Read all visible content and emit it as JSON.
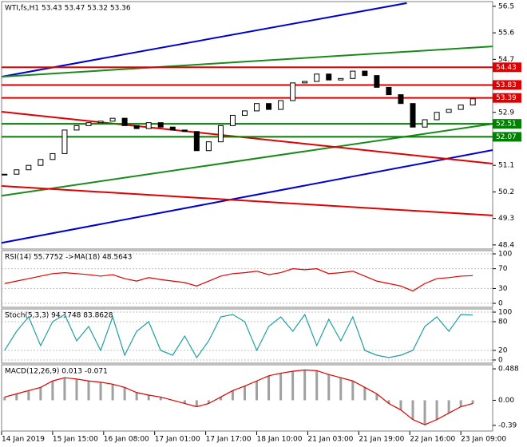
{
  "chart_data": [
    {
      "type": "candlestick",
      "title": "WTI,fs,H1  53.43 53.47 53.32 53.36",
      "x": [
        1,
        5,
        9,
        13,
        17,
        21,
        25,
        29,
        33,
        37,
        41,
        45,
        49,
        53,
        57,
        61,
        65,
        69,
        73,
        77,
        81,
        85,
        89,
        93,
        97,
        101,
        105,
        109,
        113,
        117,
        121,
        125,
        129,
        133,
        137,
        141,
        145,
        149,
        153,
        157
      ],
      "values": [
        50.8,
        50.95,
        51.1,
        51.3,
        51.5,
        52.3,
        52.45,
        52.55,
        52.6,
        52.7,
        52.45,
        52.35,
        52.55,
        52.4,
        52.3,
        52.25,
        51.6,
        51.9,
        52.45,
        52.8,
        52.95,
        53.2,
        53.0,
        53.3,
        53.9,
        53.95,
        54.2,
        54.0,
        54.05,
        54.3,
        54.15,
        53.75,
        53.5,
        53.2,
        52.4,
        52.65,
        52.9,
        53.0,
        53.15,
        53.36
      ],
      "xlim": [
        0,
        163.6
      ],
      "ylim": [
        48.26,
        56.66
      ],
      "yticks": [
        56.5,
        55.6,
        54.7,
        52.9,
        51.1,
        50.2,
        49.3,
        48.4
      ],
      "xticks": [
        {
          "value": 0,
          "label": "14 Jan 2019"
        },
        {
          "value": 17,
          "label": "15 Jan 15:00"
        },
        {
          "value": 34,
          "label": "16 Jan 08:00"
        },
        {
          "value": 51,
          "label": "17 Jan 01:00"
        },
        {
          "value": 68,
          "label": "17 Jan 17:00"
        },
        {
          "value": 85,
          "label": "18 Jan 10:00"
        },
        {
          "value": 102,
          "label": "21 Jan 03:00"
        },
        {
          "value": 119,
          "label": "21 Jan 19:00"
        },
        {
          "value": 136,
          "label": "22 Jan 16:00"
        },
        {
          "value": 153,
          "label": "23 Jan 09:00"
        }
      ],
      "levels": [
        {
          "value": 54.43,
          "color": "#e00000"
        },
        {
          "value": 53.83,
          "color": "#e00000"
        },
        {
          "value": 53.39,
          "color": "#e00000"
        },
        {
          "value": 52.51,
          "color": "#008000"
        },
        {
          "value": 52.07,
          "color": "#008000"
        }
      ],
      "trendlines": [
        {
          "color": "#0000cc",
          "x": [
            0,
            135
          ],
          "values": [
            54.11,
            56.61
          ]
        },
        {
          "color": "#0000cc",
          "x": [
            0,
            163.6
          ],
          "values": [
            48.47,
            51.62
          ]
        },
        {
          "color": "#1a8a1a",
          "x": [
            0,
            163.6
          ],
          "values": [
            54.11,
            55.14
          ]
        },
        {
          "color": "#1a8a1a",
          "x": [
            0,
            163.6
          ],
          "values": [
            50.07,
            52.51
          ]
        },
        {
          "color": "#e00000",
          "x": [
            0,
            163.6
          ],
          "values": [
            52.92,
            51.16
          ]
        },
        {
          "color": "#e00000",
          "x": [
            0,
            163.6
          ],
          "values": [
            50.4,
            49.4
          ]
        }
      ]
    },
    {
      "type": "line",
      "title": "RSI(14) 55.7752  ->MA(18) 48.5643",
      "color": "#e00000",
      "x": [
        1,
        5,
        9,
        13,
        17,
        21,
        25,
        29,
        33,
        37,
        41,
        45,
        49,
        53,
        57,
        61,
        65,
        69,
        73,
        77,
        81,
        85,
        89,
        93,
        97,
        101,
        105,
        109,
        113,
        117,
        121,
        125,
        129,
        133,
        137,
        141,
        145,
        149,
        153,
        157
      ],
      "values": [
        40,
        45,
        50,
        55,
        60,
        62,
        60,
        58,
        55,
        58,
        50,
        45,
        52,
        48,
        45,
        42,
        35,
        45,
        55,
        60,
        62,
        65,
        58,
        62,
        70,
        68,
        70,
        60,
        62,
        65,
        55,
        45,
        40,
        35,
        25,
        40,
        50,
        52,
        55,
        56
      ],
      "xlim": [
        0,
        163.6
      ],
      "ylim": [
        -8,
        106.5
      ],
      "yticks": [
        100,
        70,
        30,
        0
      ]
    },
    {
      "type": "line",
      "title": "Stoch(5,3,3) 94.1748 83.8628",
      "color": "#20a0a0",
      "x": [
        1,
        5,
        9,
        13,
        17,
        21,
        25,
        29,
        33,
        37,
        41,
        45,
        49,
        53,
        57,
        61,
        65,
        69,
        73,
        77,
        81,
        85,
        89,
        93,
        97,
        101,
        105,
        109,
        113,
        117,
        121,
        125,
        129,
        133,
        137,
        141,
        145,
        149,
        153,
        157
      ],
      "values": [
        20,
        60,
        90,
        30,
        80,
        95,
        40,
        70,
        20,
        90,
        10,
        60,
        80,
        20,
        10,
        50,
        5,
        40,
        90,
        95,
        80,
        20,
        70,
        90,
        60,
        95,
        30,
        85,
        40,
        90,
        20,
        10,
        5,
        10,
        20,
        70,
        90,
        60,
        95,
        94
      ],
      "xlim": [
        0,
        163.6
      ],
      "ylim": [
        -6.7,
        106.7
      ],
      "yticks": [
        100,
        80,
        20,
        0
      ]
    },
    {
      "type": "bar",
      "title": "MACD(12,26,9) 0.013 -0.071",
      "color": "#a0a0a0",
      "x": [
        1,
        5,
        9,
        13,
        17,
        21,
        25,
        29,
        33,
        37,
        41,
        45,
        49,
        53,
        57,
        61,
        65,
        69,
        73,
        77,
        81,
        85,
        89,
        93,
        97,
        101,
        105,
        109,
        113,
        117,
        121,
        125,
        129,
        133,
        137,
        141,
        145,
        149,
        153,
        157
      ],
      "values": [
        0.05,
        0.1,
        0.15,
        0.2,
        0.3,
        0.35,
        0.33,
        0.3,
        0.28,
        0.25,
        0.2,
        0.12,
        0.08,
        0.05,
        0.0,
        -0.05,
        -0.1,
        -0.05,
        0.05,
        0.15,
        0.22,
        0.3,
        0.38,
        0.42,
        0.45,
        0.47,
        0.46,
        0.4,
        0.35,
        0.3,
        0.2,
        0.1,
        -0.05,
        -0.15,
        -0.3,
        -0.38,
        -0.3,
        -0.2,
        -0.1,
        -0.05
      ],
      "xlim": [
        0,
        163.6
      ],
      "ylim": [
        -0.478,
        0.551
      ],
      "yticks": [
        0.488,
        {
          "value": 0,
          "label": "0.00"
        },
        -0.39
      ]
    }
  ]
}
